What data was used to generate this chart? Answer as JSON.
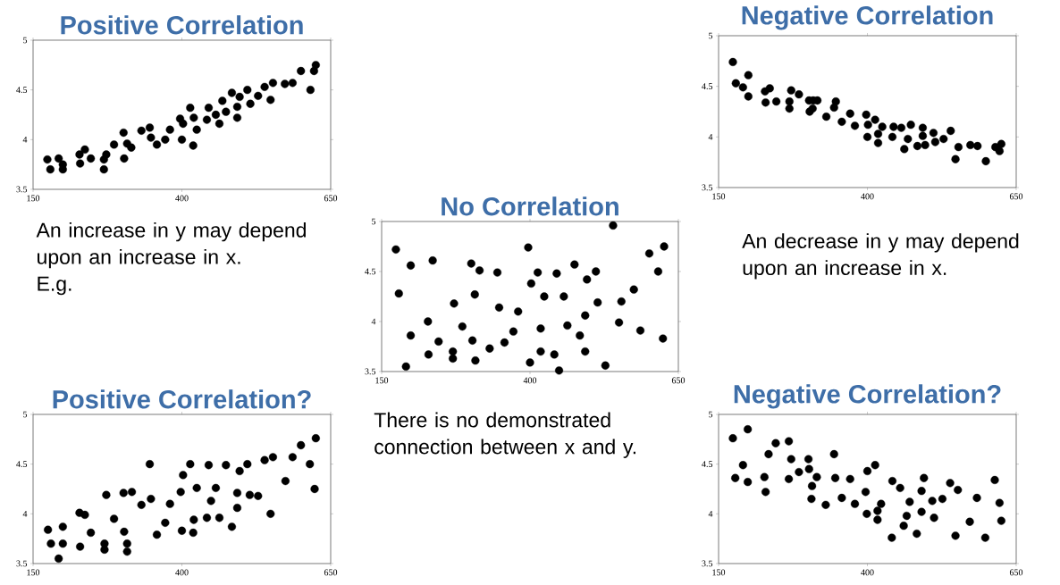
{
  "chart_data": [
    {
      "type": "scatter",
      "title": "Positive Correlation",
      "color": "#000000",
      "marker": "circle",
      "xlim": [
        150,
        650
      ],
      "ylim": [
        3.5,
        5
      ],
      "xticks": [
        150,
        400,
        650
      ],
      "yticks": [
        3.5,
        4,
        4.5,
        5
      ],
      "annotations": [
        "An increase in y may depend upon an increase in x.",
        "E.g."
      ],
      "x": [
        174,
        179,
        193,
        200,
        200,
        228,
        237,
        229,
        247,
        269,
        273,
        269,
        286,
        302,
        303,
        308,
        315,
        332,
        346,
        348,
        358,
        372,
        380,
        397,
        402,
        414,
        420,
        400,
        419,
        425,
        442,
        445,
        457,
        463,
        468,
        474,
        484,
        493,
        493,
        497,
        510,
        515,
        528,
        539,
        549,
        553,
        573,
        586,
        600,
        616,
        622,
        625
      ],
      "values": [
        3.8,
        3.7,
        3.81,
        3.75,
        3.7,
        3.85,
        3.9,
        3.76,
        3.81,
        3.8,
        3.85,
        3.7,
        3.95,
        4.07,
        3.81,
        3.96,
        3.92,
        4.09,
        4.12,
        4.02,
        3.95,
        4.0,
        4.1,
        4.21,
        4.16,
        4.32,
        4.22,
        4.0,
        3.94,
        4.1,
        4.2,
        4.32,
        4.25,
        4.16,
        4.39,
        4.28,
        4.47,
        4.33,
        4.22,
        4.43,
        4.5,
        4.36,
        4.44,
        4.53,
        4.4,
        4.57,
        4.56,
        4.57,
        4.69,
        4.5,
        4.69,
        4.75
      ]
    },
    {
      "type": "scatter",
      "title": "Negative Correlation",
      "color": "#000000",
      "marker": "circle",
      "xlim": [
        150,
        650
      ],
      "ylim": [
        3.5,
        5
      ],
      "xticks": [
        150,
        400,
        650
      ],
      "yticks": [
        3.5,
        4,
        4.5,
        5
      ],
      "annotations": [
        "An decrease in y may depend upon an increase in x."
      ],
      "x": [
        174,
        179,
        191,
        200,
        200,
        228,
        236,
        229,
        247,
        272,
        269,
        269,
        285,
        302,
        316,
        309,
        303,
        308,
        347,
        344,
        331,
        357,
        371,
        379,
        398,
        401,
        400,
        413,
        418,
        418,
        425,
        442,
        444,
        457,
        462,
        468,
        473,
        484,
        493,
        493,
        497,
        511,
        514,
        528,
        540,
        548,
        553,
        573,
        585,
        599,
        615,
        622,
        625
      ],
      "values": [
        4.74,
        4.53,
        4.49,
        4.61,
        4.4,
        4.45,
        4.48,
        4.34,
        4.35,
        4.46,
        4.35,
        4.28,
        4.42,
        4.36,
        4.36,
        4.36,
        4.25,
        4.28,
        4.35,
        4.29,
        4.2,
        4.15,
        4.23,
        4.11,
        4.22,
        4.12,
        4.0,
        4.17,
        4.03,
        3.94,
        4.1,
        4.0,
        4.1,
        4.09,
        3.88,
        3.98,
        4.12,
        3.91,
        4.09,
        4.01,
        3.92,
        4.04,
        3.95,
        3.98,
        4.06,
        3.78,
        3.9,
        3.92,
        3.91,
        3.76,
        3.9,
        3.86,
        3.93
      ]
    },
    {
      "type": "scatter",
      "title": "No Correlation",
      "color": "#000000",
      "marker": "circle",
      "xlim": [
        150,
        650
      ],
      "ylim": [
        3.5,
        5
      ],
      "xticks": [
        150,
        400,
        650
      ],
      "yticks": [
        3.5,
        4,
        4.5,
        5
      ],
      "annotations": [
        "There is no demonstrated connection between x and y."
      ],
      "x": [
        174,
        179,
        191,
        199,
        199,
        228,
        229,
        236,
        246,
        270,
        270,
        272,
        286,
        301,
        303,
        307,
        308,
        315,
        332,
        345,
        348,
        357,
        372,
        380,
        397,
        402,
        400,
        413,
        418,
        418,
        424,
        441,
        445,
        449,
        457,
        463,
        475,
        484,
        493,
        493,
        496,
        511,
        514,
        527,
        540,
        550,
        554,
        575,
        586,
        601,
        616,
        624,
        626
      ],
      "values": [
        4.72,
        4.28,
        3.55,
        4.56,
        3.86,
        4.0,
        3.67,
        4.61,
        3.8,
        3.7,
        3.63,
        4.18,
        3.95,
        4.58,
        3.81,
        4.27,
        3.61,
        4.51,
        3.73,
        4.49,
        4.14,
        3.79,
        3.9,
        4.1,
        4.74,
        4.38,
        3.59,
        4.49,
        3.93,
        3.7,
        4.25,
        3.67,
        4.48,
        3.51,
        4.25,
        3.96,
        4.57,
        3.86,
        4.06,
        3.7,
        4.42,
        4.5,
        4.19,
        3.56,
        4.96,
        3.99,
        4.2,
        4.32,
        3.91,
        4.68,
        4.5,
        3.83,
        4.75
      ]
    },
    {
      "type": "scatter",
      "title": "Positive Correlation?",
      "color": "#000000",
      "marker": "circle",
      "xlim": [
        150,
        650
      ],
      "ylim": [
        3.5,
        5
      ],
      "xticks": [
        150,
        400,
        650
      ],
      "yticks": [
        3.5,
        4,
        4.5,
        5
      ],
      "x": [
        175,
        180,
        193,
        200,
        200,
        228,
        237,
        229,
        247,
        270,
        270,
        273,
        286,
        302,
        303,
        308,
        308,
        316,
        332,
        346,
        348,
        358,
        372,
        380,
        398,
        402,
        400,
        414,
        419,
        420,
        425,
        442,
        445,
        449,
        457,
        463,
        474,
        484,
        493,
        493,
        497,
        510,
        514,
        528,
        539,
        549,
        553,
        574,
        586,
        600,
        615,
        623,
        625
      ],
      "values": [
        3.84,
        3.7,
        3.55,
        3.87,
        3.7,
        4.01,
        3.99,
        3.67,
        3.81,
        3.7,
        3.64,
        4.19,
        3.95,
        4.21,
        3.82,
        3.7,
        3.62,
        4.22,
        4.09,
        4.5,
        4.15,
        3.79,
        3.91,
        4.1,
        4.22,
        4.39,
        3.83,
        4.5,
        3.81,
        3.94,
        4.26,
        3.96,
        4.49,
        4.13,
        4.26,
        3.96,
        4.49,
        3.87,
        4.21,
        4.06,
        4.43,
        4.5,
        4.19,
        4.18,
        4.54,
        4.0,
        4.57,
        4.33,
        4.57,
        4.69,
        4.5,
        4.25,
        4.76
      ]
    },
    {
      "type": "scatter",
      "title": "Negative Correlation?",
      "color": "#000000",
      "marker": "circle",
      "xlim": [
        150,
        650
      ],
      "ylim": [
        3.5,
        5
      ],
      "xticks": [
        150,
        400,
        650
      ],
      "yticks": [
        3.5,
        4,
        4.5,
        5
      ],
      "x": [
        174,
        178,
        191,
        199,
        199,
        227,
        229,
        234,
        246,
        268,
        268,
        272,
        285,
        301,
        302,
        307,
        306,
        315,
        330,
        344,
        346,
        357,
        371,
        379,
        397,
        399,
        400,
        413,
        417,
        417,
        423,
        441,
        442,
        455,
        461,
        466,
        471,
        483,
        491,
        491,
        495,
        509,
        512,
        526,
        539,
        548,
        552,
        572,
        584,
        598,
        614,
        622,
        625
      ],
      "values": [
        4.76,
        4.36,
        4.49,
        4.85,
        4.32,
        4.37,
        4.22,
        4.6,
        4.71,
        4.73,
        4.35,
        4.55,
        4.42,
        4.55,
        4.45,
        4.28,
        4.15,
        4.37,
        4.09,
        4.6,
        4.36,
        4.16,
        4.35,
        4.1,
        4.22,
        4.0,
        4.43,
        4.49,
        4.03,
        3.94,
        4.1,
        3.76,
        4.33,
        4.26,
        3.88,
        3.98,
        4.12,
        3.8,
        4.23,
        4.02,
        4.36,
        4.13,
        3.96,
        4.15,
        4.31,
        3.78,
        4.24,
        3.92,
        4.16,
        3.76,
        4.34,
        4.11,
        3.93
      ]
    }
  ]
}
